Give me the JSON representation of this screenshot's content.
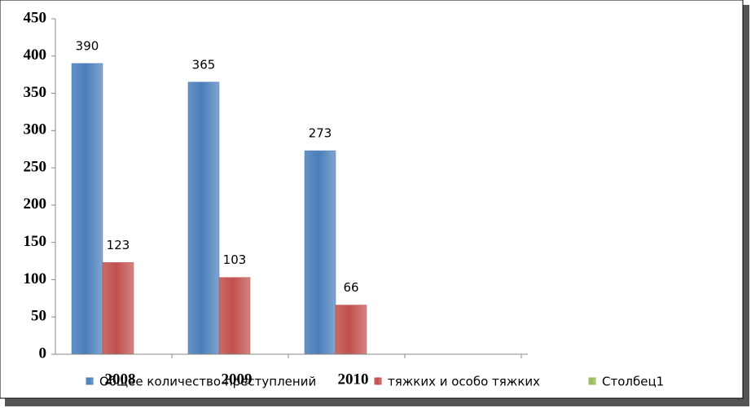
{
  "chart_data": {
    "type": "bar",
    "categories": [
      "2008",
      "2009",
      "2010",
      null
    ],
    "series": [
      {
        "name": "Общее количество преступлений",
        "color": "#4a7ebb",
        "values": [
          390,
          365,
          273,
          null
        ]
      },
      {
        "name": "тяжких и особо тяжких",
        "color": "#c0504d",
        "values": [
          123,
          103,
          66,
          null
        ]
      },
      {
        "name": "Столбец1",
        "color": "#9bbb59",
        "values": [
          null,
          null,
          null,
          null
        ]
      }
    ],
    "ylim": [
      0,
      450
    ],
    "yticks": [
      0,
      50,
      100,
      150,
      200,
      250,
      300,
      350,
      400,
      450
    ]
  }
}
